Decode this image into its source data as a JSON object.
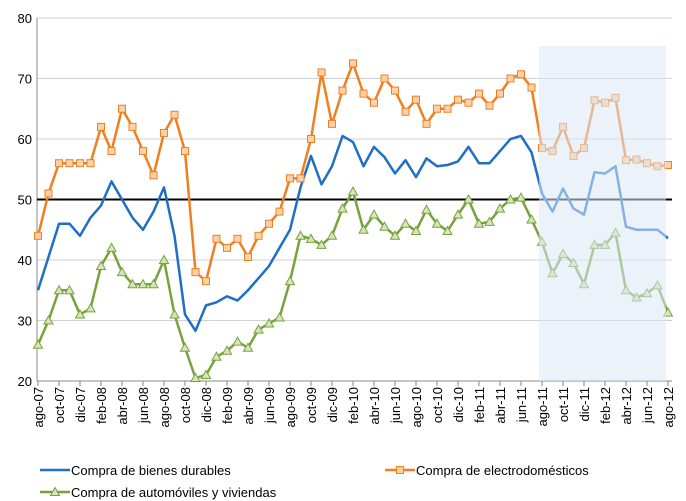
{
  "chart_data": {
    "type": "line",
    "categories": [
      "ago-07",
      null,
      "oct-07",
      null,
      "dic-07",
      null,
      "feb-08",
      null,
      "abr-08",
      null,
      "jun-08",
      null,
      "ago-08",
      null,
      "oct-08",
      null,
      "dic-08",
      null,
      "feb-09",
      null,
      "abr-09",
      null,
      "jun-09",
      null,
      "ago-09",
      null,
      "oct-09",
      null,
      "dic-09",
      null,
      "feb-10",
      null,
      "abr-10",
      null,
      "jun-10",
      null,
      "ago-10",
      null,
      "oct-10",
      null,
      "dic-10",
      null,
      "feb-11",
      null,
      "abr-11",
      null,
      "jun-11",
      null,
      "ago-11",
      null,
      "oct-11",
      null,
      "dic-11",
      null,
      "feb-12",
      null,
      "abr-12",
      null,
      "jun-12",
      null,
      "ago-12"
    ],
    "series": [
      {
        "name": "Compra de bienes durables",
        "color": "#1f6fc5",
        "marker": "none",
        "values": [
          35,
          40.5,
          46,
          46,
          44,
          47,
          49,
          53,
          50,
          47,
          45,
          48,
          52,
          44,
          31,
          28.3,
          32.5,
          33,
          34,
          33.3,
          35,
          37,
          39,
          42,
          45,
          52,
          57.2,
          52.5,
          55.5,
          60.5,
          59.5,
          55.5,
          58.7,
          57,
          54.3,
          56.5,
          53.7,
          56.8,
          55.5,
          55.7,
          56.3,
          58.7,
          56,
          56,
          58,
          60,
          60.5,
          57.8,
          51,
          48,
          51.8,
          48.5,
          47.5,
          54.5,
          54.3,
          55.5,
          45.5,
          45,
          45,
          45,
          43.6
        ]
      },
      {
        "name": "Compra de electrodomésticos",
        "color": "#f07f20",
        "marker": "square",
        "values": [
          44,
          51,
          56,
          56,
          56,
          56,
          62,
          58,
          65,
          62,
          58,
          54,
          61,
          64,
          58,
          38,
          36.5,
          43.5,
          42,
          43.5,
          40.5,
          44,
          46,
          48,
          53.5,
          53.5,
          60,
          71,
          62.5,
          68,
          72.5,
          67.5,
          66,
          70,
          68,
          64.5,
          66.5,
          62.5,
          65,
          65,
          66.5,
          66,
          67.5,
          65.5,
          67.5,
          70,
          70.7,
          68.5,
          58.5,
          58,
          62,
          57.2,
          58.5,
          66.4,
          66,
          66.8,
          56.5,
          56.6,
          56,
          55.5,
          55.7
        ]
      },
      {
        "name": "Compra de automóviles y viviendas",
        "color": "#77a33a",
        "marker": "triangle",
        "values": [
          26,
          30,
          35,
          35,
          31,
          32,
          39,
          42,
          38,
          36,
          36,
          36,
          40,
          31,
          25.5,
          20.5,
          21,
          24,
          25,
          26.5,
          25.5,
          28.5,
          29.5,
          30.5,
          36.5,
          44,
          43.5,
          42.5,
          44,
          48.5,
          51.3,
          45,
          47.5,
          45.5,
          44,
          46,
          44.8,
          48.3,
          46,
          44.8,
          47.5,
          50,
          46,
          46.3,
          48.5,
          50,
          50.3,
          46.7,
          43,
          37.8,
          41,
          39.5,
          36,
          42.5,
          42.5,
          44.5,
          35,
          33.8,
          34.5,
          35.8,
          31.3
        ]
      }
    ],
    "ylim": [
      20,
      80
    ],
    "yticks": [
      20,
      30,
      40,
      50,
      60,
      70,
      80
    ],
    "grid": true,
    "reference_line": 50,
    "shaded_from": 48,
    "legend": "bottom"
  }
}
